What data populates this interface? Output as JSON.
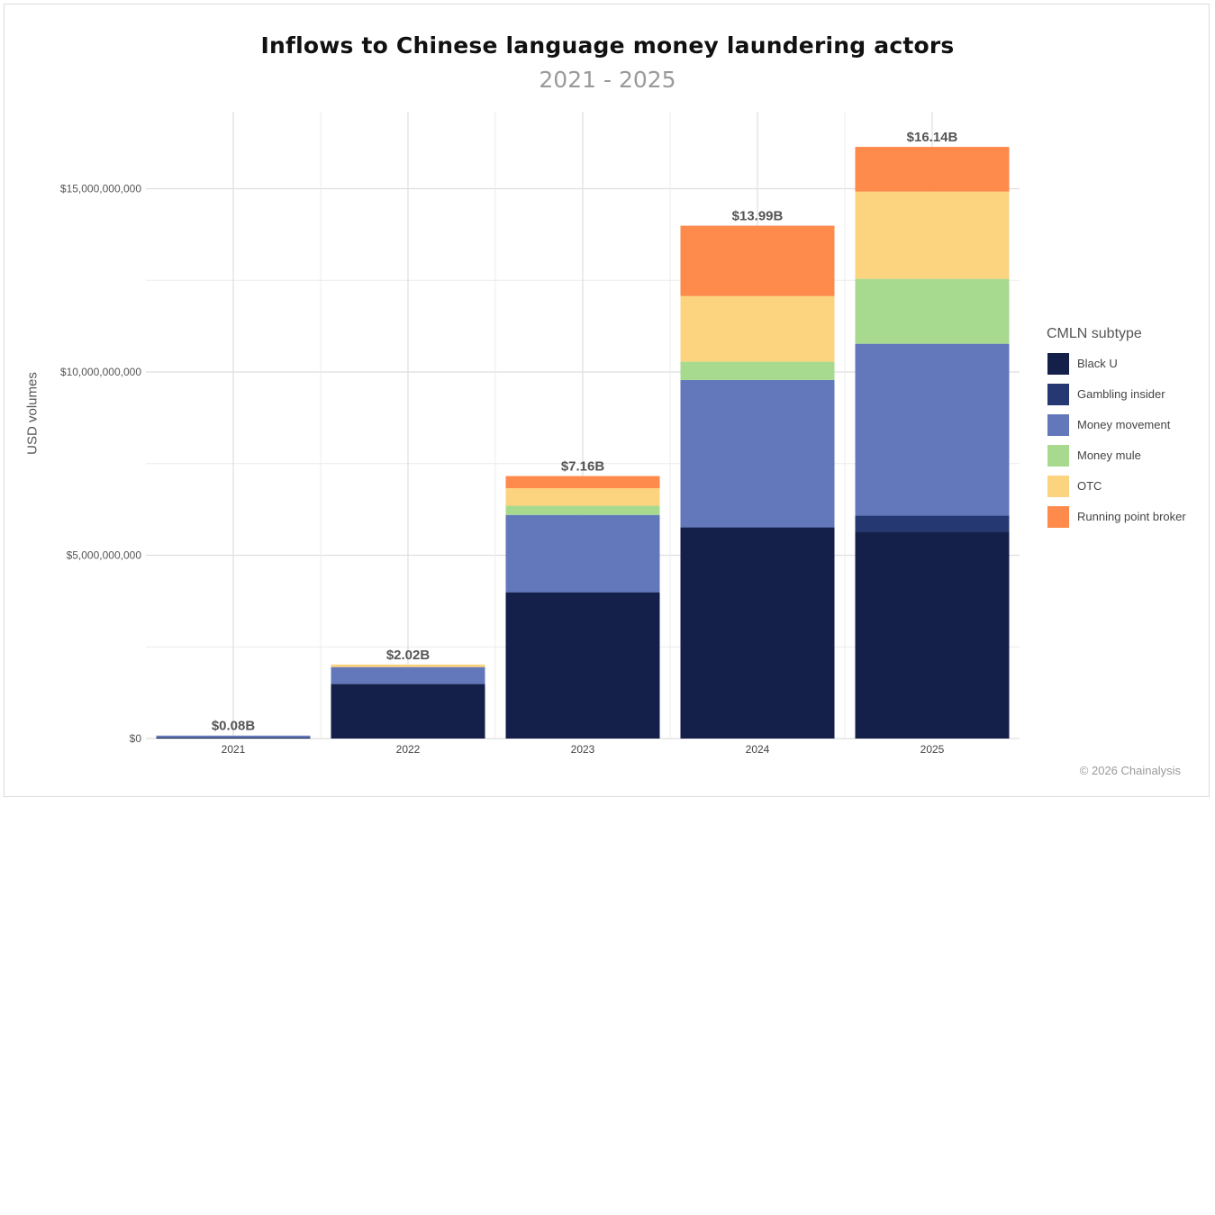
{
  "chart_data": {
    "type": "bar",
    "stacked": true,
    "title": "Inflows to Chinese language money laundering actors",
    "subtitle": "2021 - 2025",
    "xlabel": "",
    "ylabel": "USD volumes",
    "ylim": [
      0,
      17100000000
    ],
    "yticks": [
      0,
      5000000000,
      10000000000,
      15000000000
    ],
    "ytick_labels": [
      "$0",
      "$5,000,000,000",
      "$10,000,000,000",
      "$15,000,000,000"
    ],
    "grid": true,
    "legend_position": "right",
    "legend_title": "CMLN subtype",
    "categories": [
      "2021",
      "2022",
      "2023",
      "2024",
      "2025"
    ],
    "totals": [
      80000000,
      2020000000,
      7160000000,
      13990000000,
      16140000000
    ],
    "total_labels": [
      "$0.08B",
      "$2.02B",
      "$7.16B",
      "$13.99B",
      "$16.14B"
    ],
    "series": [
      {
        "name": "Black U",
        "color": "#141f4a",
        "values": [
          30000000,
          1490000000,
          3990000000,
          5760000000,
          5640000000
        ]
      },
      {
        "name": "Gambling insider",
        "color": "#263872",
        "values": [
          0,
          0,
          0,
          0,
          440000000
        ]
      },
      {
        "name": "Money movement",
        "color": "#6278bb",
        "values": [
          50000000,
          460000000,
          2110000000,
          4020000000,
          4690000000
        ]
      },
      {
        "name": "Money mule",
        "color": "#a7da8f",
        "values": [
          0,
          0,
          250000000,
          500000000,
          1770000000
        ]
      },
      {
        "name": "OTC",
        "color": "#fcd480",
        "values": [
          0,
          70000000,
          480000000,
          1790000000,
          2380000000
        ]
      },
      {
        "name": "Running point broker",
        "color": "#fe8a4b",
        "values": [
          0,
          0,
          330000000,
          1920000000,
          1220000000
        ]
      }
    ]
  },
  "footer": {
    "copyright": "© 2026 Chainalysis"
  }
}
